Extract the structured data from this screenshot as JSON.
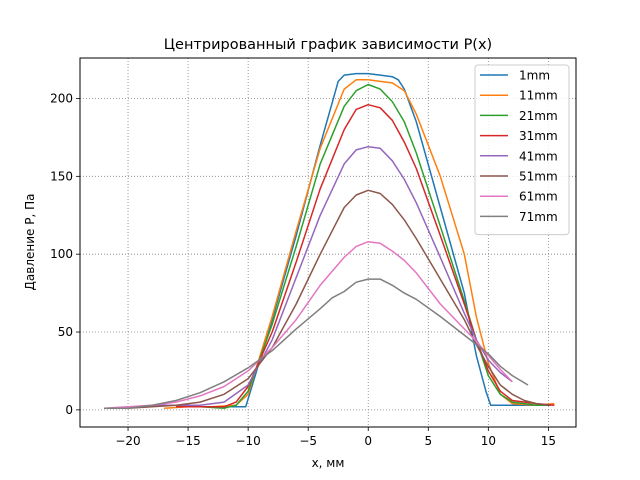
{
  "chart_data": {
    "type": "line",
    "title": "Центрированный график зависимости P(x)",
    "xlabel": "x, мм",
    "ylabel": "Давление P, Па",
    "xlim": [
      -24.0,
      17.3
    ],
    "ylim": [
      -11.0,
      226.0
    ],
    "xticks": [
      -20,
      -15,
      -10,
      -5,
      0,
      5,
      10,
      15
    ],
    "yticks": [
      0,
      50,
      100,
      150,
      200
    ],
    "xtick_labels": [
      "−20",
      "−15",
      "−10",
      "−5",
      "0",
      "5",
      "10",
      "15"
    ],
    "ytick_labels": [
      "0",
      "50",
      "100",
      "150",
      "200"
    ],
    "grid": true,
    "grid_style": "dotted",
    "legend_position": "top-right",
    "series": [
      {
        "name": "1mm",
        "color": "#1f77b4",
        "x": [
          -12,
          -10.2,
          -10,
          -8,
          -6,
          -4,
          -2.5,
          -2,
          -1,
          0,
          1,
          2,
          2.5,
          3,
          4,
          6,
          8,
          9,
          9.8,
          10.2,
          12,
          14,
          15.2
        ],
        "y": [
          2,
          2,
          7,
          58,
          112,
          170,
          211,
          215,
          216,
          216,
          215,
          214,
          212,
          206,
          185,
          130,
          75,
          35,
          12,
          3,
          3,
          3,
          3
        ]
      },
      {
        "name": "11mm",
        "color": "#ff7f0e",
        "x": [
          -17,
          -15,
          -13,
          -11,
          -10,
          -8,
          -6,
          -4,
          -2,
          -1,
          0,
          1,
          2,
          3,
          4,
          6,
          8,
          9,
          10,
          11,
          12,
          14,
          15.5
        ],
        "y": [
          1,
          2,
          2,
          3,
          10,
          60,
          115,
          168,
          206,
          212,
          212,
          211,
          210,
          205,
          190,
          150,
          100,
          60,
          30,
          10,
          4,
          3,
          4
        ]
      },
      {
        "name": "21mm",
        "color": "#2ca02c",
        "x": [
          -16,
          -14,
          -12,
          -11,
          -10,
          -8,
          -6,
          -4,
          -2,
          -1,
          0,
          1,
          2,
          3,
          4,
          6,
          8,
          9,
          10,
          11,
          12,
          14,
          15
        ],
        "y": [
          2,
          2,
          1,
          3,
          12,
          55,
          105,
          158,
          195,
          205,
          209,
          206,
          198,
          185,
          165,
          118,
          70,
          45,
          22,
          10,
          5,
          3,
          3
        ]
      },
      {
        "name": "31mm",
        "color": "#d62728",
        "x": [
          -16,
          -14,
          -12,
          -11,
          -10,
          -8,
          -6,
          -4,
          -2,
          -1,
          0,
          1,
          2,
          3,
          4,
          6,
          8,
          9,
          10,
          11,
          12,
          14,
          15.5
        ],
        "y": [
          2,
          2,
          2,
          5,
          15,
          50,
          95,
          142,
          180,
          193,
          196,
          194,
          186,
          172,
          155,
          112,
          68,
          45,
          25,
          12,
          6,
          4,
          3
        ]
      },
      {
        "name": "41mm",
        "color": "#9467bd",
        "x": [
          -18,
          -16,
          -14,
          -12,
          -10,
          -8,
          -6,
          -4,
          -2,
          -1,
          0,
          1,
          2,
          3,
          4,
          6,
          8,
          9,
          10,
          11,
          12
        ],
        "y": [
          3,
          3,
          3,
          5,
          16,
          45,
          85,
          125,
          158,
          167,
          169,
          168,
          160,
          148,
          133,
          98,
          62,
          45,
          32,
          24,
          18
        ]
      },
      {
        "name": "51mm",
        "color": "#8c564b",
        "x": [
          -20,
          -18,
          -16,
          -14,
          -12,
          -10,
          -8,
          -6,
          -4,
          -2,
          -1,
          0,
          1,
          2,
          3,
          4,
          6,
          8,
          9,
          10,
          11,
          12,
          13,
          14,
          15
        ],
        "y": [
          1,
          2,
          3,
          5,
          10,
          20,
          40,
          68,
          100,
          130,
          138,
          141,
          139,
          132,
          122,
          110,
          84,
          58,
          42,
          28,
          16,
          10,
          6,
          4,
          3
        ]
      },
      {
        "name": "61mm",
        "color": "#e377c2",
        "x": [
          -22,
          -20,
          -18,
          -16,
          -14,
          -12,
          -10,
          -8,
          -6,
          -4,
          -2,
          -1,
          0,
          1,
          2,
          3,
          4,
          6,
          8,
          9,
          10,
          11,
          12
        ],
        "y": [
          1,
          2,
          3,
          5,
          9,
          15,
          25,
          40,
          58,
          80,
          98,
          105,
          108,
          107,
          102,
          96,
          88,
          68,
          52,
          44,
          35,
          26,
          18
        ]
      },
      {
        "name": "71mm",
        "color": "#7f7f7f",
        "x": [
          -22,
          -20,
          -18,
          -16,
          -14,
          -12,
          -10,
          -8,
          -6,
          -4,
          -3,
          -2,
          -1,
          0,
          1,
          2,
          3,
          4,
          6,
          8,
          9,
          10,
          11,
          12,
          13.3
        ],
        "y": [
          1,
          1,
          3,
          6,
          11,
          18,
          27,
          38,
          52,
          65,
          72,
          76,
          82,
          84,
          84,
          80,
          75,
          71,
          60,
          48,
          42,
          36,
          28,
          22,
          16
        ]
      }
    ]
  }
}
